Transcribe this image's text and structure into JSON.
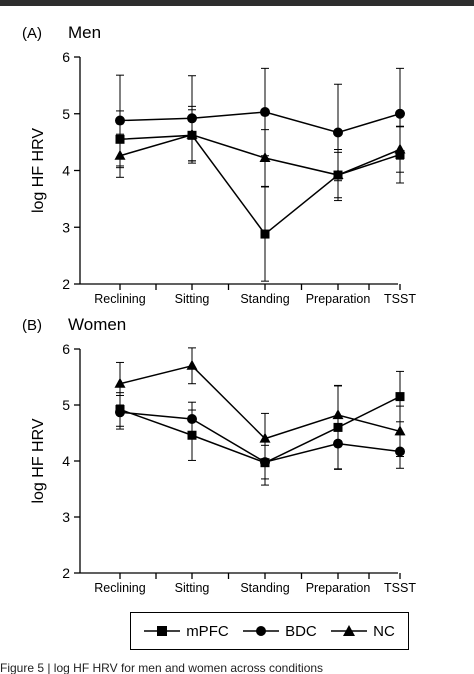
{
  "chart_data": [
    {
      "type": "line",
      "panel_label": "(A)",
      "title": "Men",
      "ylabel": "log HF HRV",
      "categories": [
        "Reclining",
        "Sitting",
        "Standing",
        "Preparation",
        "TSST"
      ],
      "ylim": [
        2,
        6
      ],
      "yticks": [
        "2",
        "3",
        "4",
        "5",
        "6"
      ],
      "series": [
        {
          "name": "mPFC",
          "marker": "square",
          "values": [
            4.55,
            4.62,
            2.88,
            3.92,
            4.28
          ],
          "err": [
            0.5,
            0.45,
            0.83,
            0.45,
            0.5
          ]
        },
        {
          "name": "BDC",
          "marker": "circle",
          "values": [
            4.88,
            4.92,
            5.03,
            4.67,
            5.0
          ],
          "err": [
            0.8,
            0.75,
            0.77,
            0.85,
            0.8
          ]
        },
        {
          "name": "NC",
          "marker": "triangle",
          "values": [
            4.26,
            4.63,
            4.22,
            3.92,
            4.37
          ],
          "err": [
            0.38,
            0.5,
            0.5,
            0.4,
            0.4
          ]
        }
      ]
    },
    {
      "type": "line",
      "panel_label": "(B)",
      "title": "Women",
      "ylabel": "log HF HRV",
      "categories": [
        "Reclining",
        "Sitting",
        "Standing",
        "Preparation",
        "TSST"
      ],
      "ylim": [
        2,
        6
      ],
      "yticks": [
        "2",
        "3",
        "4",
        "5",
        "6"
      ],
      "series": [
        {
          "name": "mPFC",
          "marker": "square",
          "values": [
            4.92,
            4.46,
            3.97,
            4.6,
            5.15
          ],
          "err": [
            0.3,
            0.45,
            0.4,
            0.75,
            0.45
          ]
        },
        {
          "name": "BDC",
          "marker": "circle",
          "values": [
            4.87,
            4.75,
            3.98,
            4.31,
            4.17
          ],
          "err": [
            0.3,
            0.3,
            0.3,
            0.45,
            0.3
          ]
        },
        {
          "name": "NC",
          "marker": "triangle",
          "values": [
            5.38,
            5.7,
            4.4,
            4.82,
            4.53
          ],
          "err": [
            0.38,
            0.32,
            0.45,
            0.52,
            0.45
          ]
        }
      ]
    }
  ],
  "legend": {
    "items": [
      "mPFC",
      "BDC",
      "NC"
    ]
  },
  "caption": "Figure 5 | log HF HRV for men and women across conditions"
}
